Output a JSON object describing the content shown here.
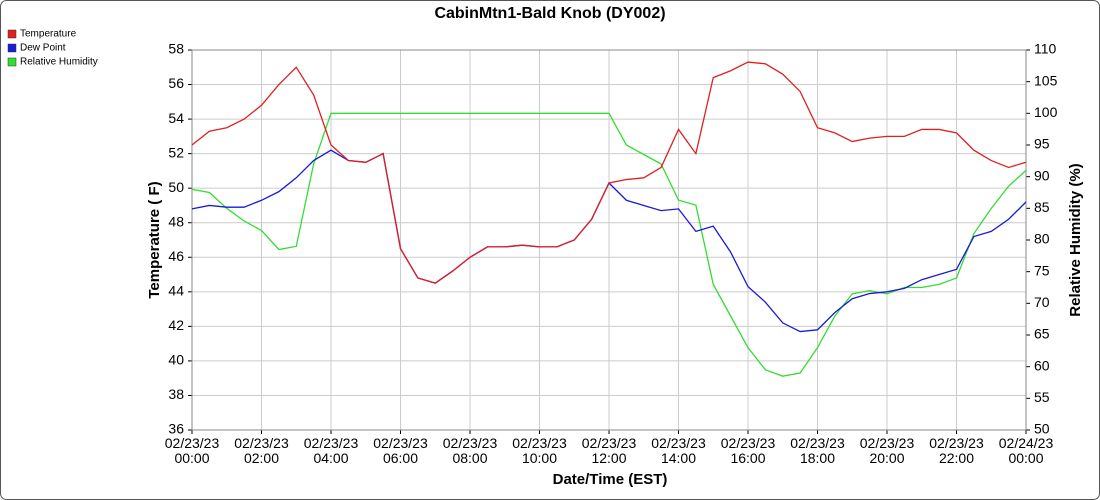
{
  "chart_data": {
    "type": "line",
    "title": "CabinMtn1-Bald Knob (DY002)",
    "xlabel": "Date/Time (EST)",
    "ylabel": "Temperature ( F)",
    "y2label": "Relative Humidity (%)",
    "x": [
      0,
      0.5,
      1,
      1.5,
      2,
      2.5,
      3,
      3.5,
      4,
      4.5,
      5,
      5.5,
      6,
      6.5,
      7,
      7.5,
      8,
      8.5,
      9,
      9.5,
      10,
      10.5,
      11,
      11.5,
      12,
      12.5,
      13,
      13.5,
      14,
      14.5,
      15,
      15.5,
      16,
      16.5,
      17,
      17.5,
      18,
      18.5,
      19,
      19.5,
      20,
      20.5,
      21,
      21.5,
      22,
      22.5,
      23,
      23.5,
      24
    ],
    "series": [
      {
        "name": "Temperature",
        "color": "#e02020",
        "values": [
          52.5,
          53.3,
          53.5,
          54.0,
          54.8,
          56.0,
          57.0,
          55.4,
          52.5,
          51.6,
          51.5,
          52.0,
          46.5,
          44.8,
          44.5,
          45.2,
          46.0,
          46.6,
          46.6,
          46.7,
          46.6,
          46.6,
          47.0,
          48.2,
          50.3,
          50.5,
          50.6,
          51.2,
          53.4,
          52.0,
          56.4,
          56.8,
          57.3,
          57.2,
          56.6,
          55.6,
          53.5,
          53.2,
          52.7,
          52.9,
          53.0,
          53.0,
          53.4,
          53.4,
          53.2,
          52.2,
          51.6,
          51.2,
          51.5
        ]
      },
      {
        "name": "Dew Point",
        "color": "#1a1ad8",
        "values": [
          48.8,
          49.0,
          48.9,
          48.9,
          49.3,
          49.8,
          50.6,
          51.6,
          52.2,
          51.6,
          51.5,
          52.0,
          46.5,
          44.8,
          44.5,
          45.2,
          46.0,
          46.6,
          46.6,
          46.7,
          46.6,
          46.6,
          47.0,
          48.2,
          50.3,
          49.3,
          49.0,
          48.7,
          48.8,
          47.5,
          47.8,
          46.3,
          44.3,
          43.4,
          42.2,
          41.7,
          41.8,
          42.8,
          43.6,
          43.9,
          44.0,
          44.2,
          44.7,
          45.0,
          45.3,
          47.2,
          47.5,
          48.2,
          49.2
        ]
      },
      {
        "name": "Relative Humidity",
        "color": "#33dd33",
        "axis": "y2",
        "values": [
          88,
          87.5,
          85,
          83,
          81.5,
          78.5,
          79,
          92,
          100,
          100,
          100,
          100,
          100,
          100,
          100,
          100,
          100,
          100,
          100,
          100,
          100,
          100,
          100,
          100,
          100,
          95,
          93.5,
          92,
          86.3,
          85.5,
          73,
          68,
          63,
          59.5,
          58.5,
          59,
          63,
          68,
          71.5,
          72,
          71.5,
          72.5,
          72.5,
          73,
          74,
          81,
          85,
          88.5,
          91
        ]
      }
    ],
    "xlim": [
      0,
      24
    ],
    "xticks": [
      {
        "value": 0,
        "label": "02/23/23\n00:00"
      },
      {
        "value": 2,
        "label": "02/23/23\n02:00"
      },
      {
        "value": 4,
        "label": "02/23/23\n04:00"
      },
      {
        "value": 6,
        "label": "02/23/23\n06:00"
      },
      {
        "value": 8,
        "label": "02/23/23\n08:00"
      },
      {
        "value": 10,
        "label": "02/23/23\n10:00"
      },
      {
        "value": 12,
        "label": "02/23/23\n12:00"
      },
      {
        "value": 14,
        "label": "02/23/23\n14:00"
      },
      {
        "value": 16,
        "label": "02/23/23\n16:00"
      },
      {
        "value": 18,
        "label": "02/23/23\n18:00"
      },
      {
        "value": 20,
        "label": "02/23/23\n20:00"
      },
      {
        "value": 22,
        "label": "02/23/23\n22:00"
      },
      {
        "value": 24,
        "label": "02/24/23\n00:00"
      }
    ],
    "ylim": [
      36,
      58
    ],
    "yticks": [
      36,
      38,
      40,
      42,
      44,
      46,
      48,
      50,
      52,
      54,
      56,
      58
    ],
    "y2lim": [
      50,
      110
    ],
    "y2ticks": [
      50,
      55,
      60,
      65,
      70,
      75,
      80,
      85,
      90,
      95,
      100,
      105,
      110
    ],
    "grid": true,
    "legend": "top-left"
  }
}
